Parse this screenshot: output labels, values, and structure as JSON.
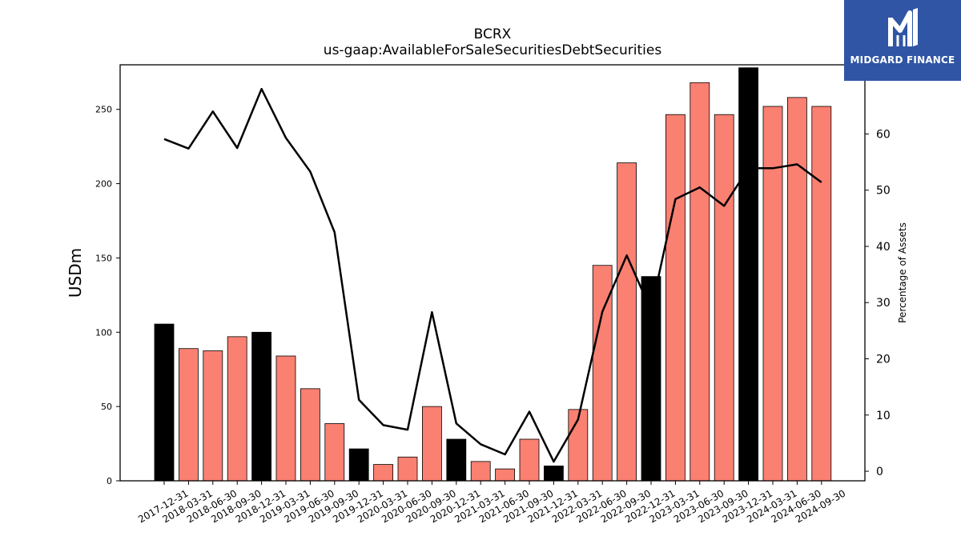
{
  "brand": {
    "name": "MIDGARD FINANCE",
    "bg_color": "#2f55a4",
    "logo_icon": "midgard-logo-icon"
  },
  "chart_data": {
    "type": "bar",
    "title": "BCRX",
    "subtitle": "us-gaap:AvailableForSaleSecuritiesDebtSecurities",
    "ylabel": "USDm",
    "y2label": "Percentage of Assets",
    "ylim": [
      0,
      280
    ],
    "y2lim": [
      -1.7,
      72.3
    ],
    "yticks": [
      0,
      50,
      100,
      150,
      200,
      250
    ],
    "y2ticks": [
      0,
      10,
      20,
      30,
      40,
      50,
      60
    ],
    "categories": [
      "2017-12-31",
      "2018-03-31",
      "2018-06-30",
      "2018-09-30",
      "2018-12-31",
      "2019-03-31",
      "2019-06-30",
      "2019-09-30",
      "2019-12-31",
      "2020-03-31",
      "2020-06-30",
      "2020-09-30",
      "2020-12-31",
      "2021-03-31",
      "2021-06-30",
      "2021-09-30",
      "2021-12-31",
      "2022-03-31",
      "2022-06-30",
      "2022-09-30",
      "2022-12-31",
      "2023-03-31",
      "2023-06-30",
      "2023-09-30",
      "2023-12-31",
      "2024-03-31",
      "2024-06-30",
      "2024-09-30"
    ],
    "series": [
      {
        "type": "bar",
        "values": [
          105.5,
          89,
          87.5,
          97,
          100,
          84,
          62,
          38.5,
          21.5,
          11,
          16,
          50,
          28,
          13,
          8,
          28,
          10,
          48,
          145,
          214,
          137.5,
          246.5,
          268,
          246.5,
          278,
          252,
          258,
          252
        ],
        "year_end_color": "#000000",
        "quarter_color": "#fa8072"
      },
      {
        "type": "line",
        "axis": "right",
        "color": "#000000",
        "values": [
          59.1,
          57.4,
          64,
          57.5,
          68,
          59.3,
          53.3,
          42.5,
          12.7,
          8.2,
          7.4,
          28.3,
          8.5,
          4.8,
          3,
          10.6,
          1.7,
          9.2,
          28.4,
          38.4,
          28.6,
          48.4,
          50.5,
          47.2,
          53.9,
          53.9,
          54.6,
          51.4
        ]
      }
    ],
    "grid": false,
    "legend": "none"
  }
}
